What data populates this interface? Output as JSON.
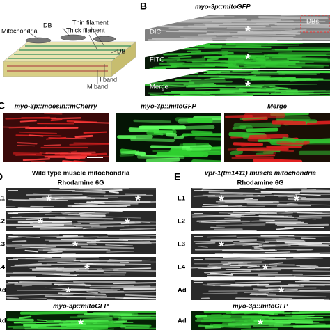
{
  "marker": "*",
  "panel_a": {
    "labels": [
      "Mitochondria",
      "DB",
      "Thin filament",
      "Thick filament",
      "DB",
      "I band",
      "M band"
    ]
  },
  "panel_b": {
    "letter": "B",
    "title": "myo-3p::mitoGFP",
    "rows": [
      "DIC",
      "FITC",
      "Merge"
    ],
    "inset": "DBs"
  },
  "panel_c": {
    "letter": "C",
    "columns": [
      "myo-3p::moesin::mCherry",
      "myo-3p::mitoGFP",
      "Merge"
    ]
  },
  "panel_d": {
    "letter": "D",
    "title": "Wild type muscle mitochondria",
    "stain": "Rhodamine 6G",
    "rows": [
      "L1",
      "L2",
      "L3",
      "L4",
      "Ad"
    ],
    "gfp_title": "myo-3p::mitoGFP",
    "gfp_row": "Ad"
  },
  "panel_e": {
    "letter": "E",
    "title": "vpr-1(tm1411) muscle mitochondria",
    "stain": "Rhodamine 6G",
    "rows": [
      "L1",
      "L2",
      "L3",
      "L4",
      "Ad"
    ],
    "gfp_title": "myo-3p::mitoGFP",
    "gfp_row": "Ad"
  }
}
